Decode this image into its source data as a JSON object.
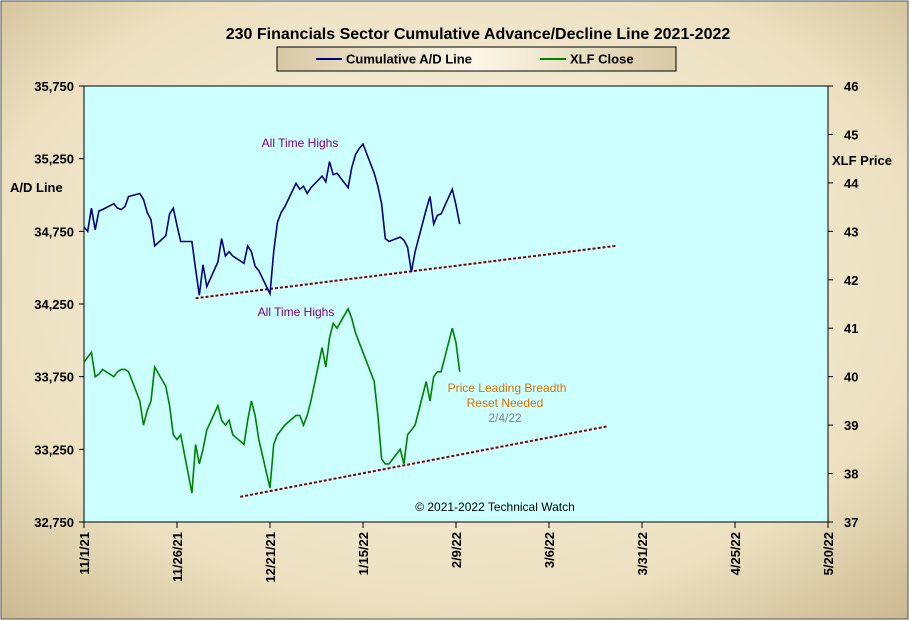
{
  "chart_data": {
    "type": "line",
    "title": "230 Financials  Sector Cumulative  Advance/Decline  Line  2021-2022",
    "left_axis_label": "A/D Line",
    "right_axis_label": "XLF Price",
    "left_ylim": [
      32750,
      35750
    ],
    "left_ticks": [
      "35,750",
      "35,250",
      "34,750",
      "34,250",
      "33,750",
      "33,250",
      "32,750"
    ],
    "right_ylim": [
      37,
      46
    ],
    "right_ticks": [
      "46",
      "45",
      "44",
      "43",
      "42",
      "41",
      "40",
      "39",
      "38",
      "37"
    ],
    "x_tick_labels": [
      "11/1/21",
      "11/26/21",
      "12/21/21",
      "1/15/22",
      "2/9/22",
      "3/6/22",
      "3/31/22",
      "4/25/22",
      "5/20/22"
    ],
    "grid": false,
    "legend_position": "top-center",
    "colors": {
      "outer_bg": "#efe4c6",
      "plot_bg": "#ccffff",
      "ad_line": "#000080",
      "xlf_line": "#008000",
      "trend": "#800000",
      "annotation_purple": "#800080",
      "annotation_orange": "#e07000",
      "annotation_gray": "#808080",
      "legend_bg": "#e8dcc0"
    },
    "series": [
      {
        "name": "Cumulative A/D Line",
        "axis": "left",
        "x": [
          0,
          1,
          2,
          3,
          4,
          5,
          8,
          9,
          10,
          11,
          12,
          15,
          16,
          17,
          18,
          19,
          22,
          23,
          24,
          25,
          26,
          29,
          30,
          31,
          32,
          33,
          36,
          37,
          38,
          39,
          40,
          43,
          44,
          45,
          46,
          47,
          50,
          51,
          52,
          53,
          54,
          57,
          58,
          59,
          60,
          61,
          64,
          65,
          66,
          67,
          68,
          71,
          72,
          73,
          74,
          75,
          78,
          79,
          80,
          81,
          82,
          85,
          86,
          87,
          88,
          89,
          92,
          93,
          94,
          95,
          96,
          99,
          100,
          101
        ],
        "values": [
          34780,
          34750,
          34910,
          34760,
          34890,
          34900,
          34940,
          34910,
          34900,
          34920,
          34990,
          35010,
          34970,
          34880,
          34830,
          34650,
          34720,
          34870,
          34910,
          34790,
          34680,
          34680,
          34490,
          34310,
          34520,
          34370,
          34540,
          34700,
          34580,
          34610,
          34580,
          34530,
          34650,
          34610,
          34510,
          34480,
          34320,
          34610,
          34810,
          34880,
          34920,
          35080,
          35040,
          35060,
          35010,
          35050,
          35130,
          35090,
          35230,
          35140,
          35150,
          35050,
          35190,
          35280,
          35320,
          35350,
          35150,
          35060,
          34940,
          34700,
          34680,
          34710,
          34690,
          34640,
          34470,
          34610,
          34900,
          34990,
          34800,
          34860,
          34870,
          35040,
          34930,
          34800
        ]
      },
      {
        "name": "XLF Close",
        "axis": "right",
        "x": [
          0,
          1,
          2,
          3,
          4,
          5,
          8,
          9,
          10,
          11,
          12,
          15,
          16,
          17,
          18,
          19,
          22,
          23,
          24,
          25,
          26,
          29,
          30,
          31,
          32,
          33,
          36,
          37,
          38,
          39,
          40,
          43,
          44,
          45,
          46,
          47,
          50,
          51,
          52,
          53,
          54,
          57,
          58,
          59,
          60,
          61,
          64,
          65,
          66,
          67,
          68,
          71,
          72,
          73,
          74,
          75,
          78,
          79,
          80,
          81,
          82,
          85,
          86,
          87,
          88,
          89,
          92,
          93,
          94,
          95,
          96,
          99,
          100,
          101
        ],
        "values": [
          40.3,
          40.4,
          40.5,
          40.0,
          40.05,
          40.15,
          40.0,
          40.1,
          40.15,
          40.15,
          40.1,
          39.5,
          39.0,
          39.3,
          39.5,
          40.2,
          39.8,
          39.4,
          38.8,
          38.7,
          38.8,
          37.6,
          38.6,
          38.2,
          38.5,
          38.9,
          39.4,
          39.1,
          39.0,
          39.1,
          38.8,
          38.6,
          39.1,
          39.5,
          39.2,
          38.7,
          37.7,
          38.6,
          38.8,
          38.9,
          39.0,
          39.2,
          39.2,
          39.0,
          39.2,
          39.5,
          40.6,
          40.2,
          40.8,
          41.1,
          41.0,
          41.4,
          41.2,
          40.9,
          40.7,
          40.5,
          39.9,
          39.2,
          38.3,
          38.2,
          38.2,
          38.5,
          38.2,
          38.8,
          38.9,
          39.0,
          39.9,
          39.5,
          40.0,
          40.1,
          40.1,
          41.0,
          40.7,
          40.1
        ]
      }
    ],
    "trendlines": [
      {
        "axis": "left",
        "x": [
          30,
          143
        ],
        "values": [
          34290,
          34650
        ]
      },
      {
        "axis": "right",
        "x": [
          42,
          141
        ],
        "values": [
          37.52,
          38.98
        ]
      }
    ],
    "annotations": [
      {
        "text": "All Time Highs",
        "color": "annotation_purple"
      },
      {
        "text": "All Time Highs",
        "color": "annotation_purple"
      },
      {
        "text": "Price Leading Breadth",
        "color": "annotation_orange"
      },
      {
        "text": "Reset Needed",
        "color": "annotation_orange"
      },
      {
        "text": "2/4/22",
        "color": "annotation_gray"
      },
      {
        "text": "© 2021-2022  Technical Watch",
        "color": "black"
      }
    ]
  }
}
